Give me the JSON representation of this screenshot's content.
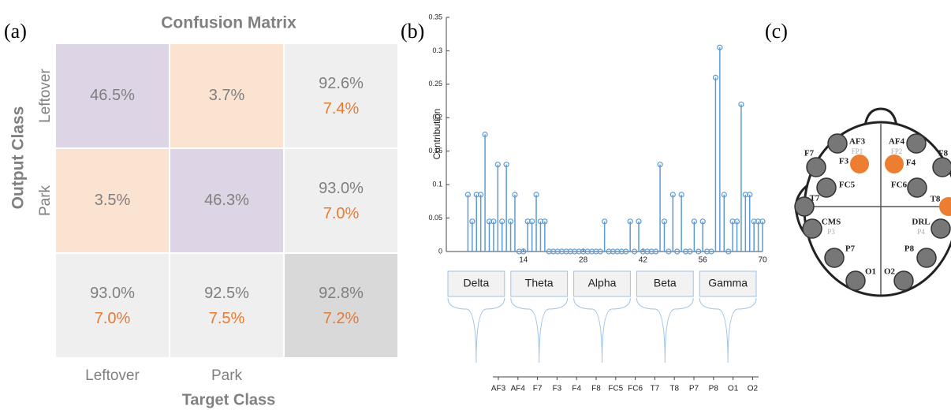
{
  "panel_labels": [
    "(a)",
    "(b)",
    "(c)"
  ],
  "confusion_matrix": {
    "title": "Confusion Matrix",
    "y_label": "Output Class",
    "x_label": "Target Class",
    "row_labels": [
      "Leftover",
      "Park"
    ],
    "col_labels": [
      "Leftover",
      "Park"
    ],
    "cells": [
      [
        [
          "46.5%"
        ],
        [
          "3.7%"
        ],
        [
          "92.6%",
          "7.4%"
        ]
      ],
      [
        [
          "3.5%"
        ],
        [
          "46.3%"
        ],
        [
          "93.0%",
          "7.0%"
        ]
      ],
      [
        [
          "93.0%",
          "7.0%"
        ],
        [
          "92.5%",
          "7.5%"
        ],
        [
          "92.8%",
          "7.2%"
        ]
      ]
    ]
  },
  "chart_data": {
    "type": "stem",
    "y_label": "Contribution",
    "color": "#5b9bd5",
    "x": [
      1,
      2,
      3,
      4,
      5,
      6,
      7,
      8,
      9,
      10,
      11,
      12,
      13,
      14,
      15,
      16,
      17,
      18,
      19,
      20,
      21,
      22,
      23,
      24,
      25,
      26,
      27,
      28,
      29,
      30,
      31,
      32,
      33,
      34,
      35,
      36,
      37,
      38,
      39,
      40,
      41,
      42,
      43,
      44,
      45,
      46,
      47,
      48,
      49,
      50,
      51,
      52,
      53,
      54,
      55,
      56,
      57,
      58,
      59,
      60,
      61,
      62,
      63,
      64,
      65,
      66,
      67,
      68,
      69,
      70
    ],
    "values": [
      0.085,
      0.045,
      0.085,
      0.085,
      0.175,
      0.045,
      0.045,
      0.13,
      0.045,
      0.13,
      0.045,
      0.085,
      0,
      0,
      0.045,
      0.045,
      0.085,
      0.045,
      0.045,
      0,
      0,
      0,
      0,
      0,
      0,
      0,
      0,
      0,
      0,
      0,
      0,
      0,
      0.045,
      0,
      0,
      0,
      0,
      0,
      0.045,
      0,
      0.045,
      0,
      0,
      0,
      0,
      0.13,
      0.045,
      0,
      0.085,
      0,
      0.085,
      0,
      0,
      0.045,
      0,
      0.045,
      0,
      0,
      0.26,
      0.305,
      0.085,
      0,
      0.045,
      0.045,
      0.22,
      0.085,
      0.085,
      0.045,
      0.045,
      0.045
    ],
    "xlim": [
      0,
      70
    ],
    "xticks": [
      14,
      28,
      42,
      56,
      70
    ],
    "ylim": [
      0,
      0.35
    ],
    "yticks": [
      0,
      0.05,
      0.1,
      0.15,
      0.2,
      0.25,
      0.3,
      0.35
    ],
    "bands": [
      "Delta",
      "Theta",
      "Alpha",
      "Beta",
      "Gamma"
    ],
    "channels": [
      "AF3",
      "AF4",
      "F7",
      "F3",
      "F4",
      "F8",
      "FC5",
      "FC6",
      "T7",
      "T8",
      "P7",
      "P8",
      "O1",
      "O2"
    ]
  },
  "head": {
    "electrodes": [
      {
        "label": "AF3",
        "sublabel": "FP1"
      },
      {
        "label": "AF4",
        "sublabel": "FP2"
      },
      {
        "label": "F7"
      },
      {
        "label": "F3"
      },
      {
        "label": "F4"
      },
      {
        "label": "F8"
      },
      {
        "label": "FC5"
      },
      {
        "label": "FC6"
      },
      {
        "label": "T7"
      },
      {
        "label": "T8"
      },
      {
        "label": "CMS",
        "sublabel": "P3"
      },
      {
        "label": "DRL",
        "sublabel": "P4"
      },
      {
        "label": "P7"
      },
      {
        "label": "P8"
      },
      {
        "label": "O1"
      },
      {
        "label": "O2"
      }
    ]
  }
}
